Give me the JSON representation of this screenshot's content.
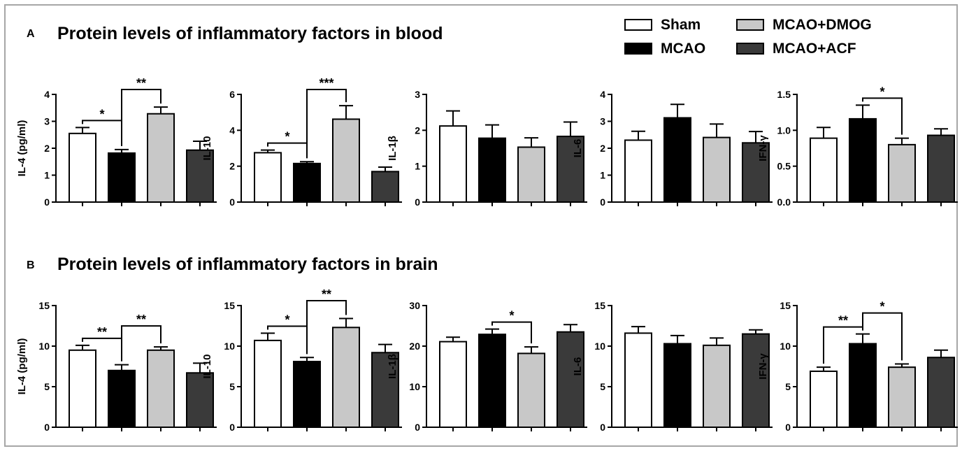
{
  "panels": [
    {
      "letter": "A",
      "title": "Protein levels of inflammatory factors in blood"
    },
    {
      "letter": "B",
      "title": "Protein levels of inflammatory factors in brain"
    }
  ],
  "legend": [
    {
      "name": "Sham",
      "color": "#ffffff"
    },
    {
      "name": "MCAO",
      "color": "#000000"
    },
    {
      "name": "MCAO+DMOG",
      "color": "#c8c8c8"
    },
    {
      "name": "MCAO+ACF",
      "color": "#3a3a3a"
    }
  ],
  "colors": {
    "axis": "#000000",
    "frame": "#a6a6a6"
  },
  "chart_data": [
    {
      "type": "bar",
      "panel": "A",
      "ylabel": "IL-4 (pg/ml)",
      "ylim": [
        0,
        4
      ],
      "yticks": [
        "0",
        "1",
        "2",
        "3",
        "4"
      ],
      "categories": [
        "Sham",
        "MCAO",
        "MCAO+DMOG",
        "MCAO+ACF"
      ],
      "values": [
        2.55,
        1.82,
        3.28,
        1.93
      ],
      "errors": [
        0.22,
        0.13,
        0.25,
        0.33
      ],
      "significance": [
        {
          "from": 0,
          "to": 1,
          "label": "*"
        },
        {
          "from": 1,
          "to": 2,
          "label": "**"
        }
      ]
    },
    {
      "type": "bar",
      "panel": "A",
      "ylabel": "IL-10",
      "ylim": [
        0,
        6
      ],
      "yticks": [
        "0",
        "2",
        "4",
        "6"
      ],
      "categories": [
        "Sham",
        "MCAO",
        "MCAO+DMOG",
        "MCAO+ACF"
      ],
      "values": [
        2.75,
        2.15,
        4.62,
        1.7
      ],
      "errors": [
        0.15,
        0.1,
        0.75,
        0.25
      ],
      "significance": [
        {
          "from": 0,
          "to": 1,
          "label": "*"
        },
        {
          "from": 1,
          "to": 2,
          "label": "***"
        }
      ]
    },
    {
      "type": "bar",
      "panel": "A",
      "ylabel": "IL-1β",
      "ylim": [
        0,
        3
      ],
      "yticks": [
        "0",
        "1",
        "2",
        "3"
      ],
      "categories": [
        "Sham",
        "MCAO",
        "MCAO+DMOG",
        "MCAO+ACF"
      ],
      "values": [
        2.12,
        1.78,
        1.53,
        1.83
      ],
      "errors": [
        0.42,
        0.37,
        0.26,
        0.4
      ],
      "significance": []
    },
    {
      "type": "bar",
      "panel": "A",
      "ylabel": "IL-6",
      "ylim": [
        0,
        4
      ],
      "yticks": [
        "0",
        "1",
        "2",
        "3",
        "4"
      ],
      "categories": [
        "Sham",
        "MCAO",
        "MCAO+DMOG",
        "MCAO+ACF"
      ],
      "values": [
        2.3,
        3.13,
        2.4,
        2.2
      ],
      "errors": [
        0.33,
        0.5,
        0.5,
        0.42
      ],
      "significance": []
    },
    {
      "type": "bar",
      "panel": "A",
      "ylabel": "IFN-γ",
      "ylim": [
        0,
        1.5
      ],
      "yticks": [
        "0.0",
        "0.5",
        "1.0",
        "1.5"
      ],
      "categories": [
        "Sham",
        "MCAO",
        "MCAO+DMOG",
        "MCAO+ACF"
      ],
      "values": [
        0.89,
        1.16,
        0.8,
        0.93
      ],
      "errors": [
        0.15,
        0.19,
        0.09,
        0.09
      ],
      "significance": [
        {
          "from": 1,
          "to": 2,
          "label": "*"
        }
      ]
    },
    {
      "type": "bar",
      "panel": "B",
      "ylabel": "IL-4 (pg/ml)",
      "ylim": [
        0,
        15
      ],
      "yticks": [
        "0",
        "5",
        "10",
        "15"
      ],
      "categories": [
        "Sham",
        "MCAO",
        "MCAO+DMOG",
        "MCAO+ACF"
      ],
      "values": [
        9.5,
        7.0,
        9.5,
        6.7
      ],
      "errors": [
        0.6,
        0.7,
        0.4,
        1.2
      ],
      "significance": [
        {
          "from": 0,
          "to": 1,
          "label": "**"
        },
        {
          "from": 1,
          "to": 2,
          "label": "**"
        }
      ]
    },
    {
      "type": "bar",
      "panel": "B",
      "ylabel": "IL-10",
      "ylim": [
        0,
        15
      ],
      "yticks": [
        "0",
        "5",
        "10",
        "15"
      ],
      "categories": [
        "Sham",
        "MCAO",
        "MCAO+DMOG",
        "MCAO+ACF"
      ],
      "values": [
        10.7,
        8.1,
        12.3,
        9.2
      ],
      "errors": [
        0.9,
        0.5,
        1.1,
        1.0
      ],
      "significance": [
        {
          "from": 0,
          "to": 1,
          "label": "*"
        },
        {
          "from": 1,
          "to": 2,
          "label": "**"
        }
      ]
    },
    {
      "type": "bar",
      "panel": "B",
      "ylabel": "IL-1β",
      "ylim": [
        0,
        30
      ],
      "yticks": [
        "0",
        "10",
        "20",
        "30"
      ],
      "categories": [
        "Sham",
        "MCAO",
        "MCAO+DMOG",
        "MCAO+ACF"
      ],
      "values": [
        21.1,
        22.9,
        18.2,
        23.5
      ],
      "errors": [
        1.1,
        1.3,
        1.6,
        1.8
      ],
      "significance": [
        {
          "from": 1,
          "to": 2,
          "label": "*"
        }
      ]
    },
    {
      "type": "bar",
      "panel": "B",
      "ylabel": "IL-6",
      "ylim": [
        0,
        15
      ],
      "yticks": [
        "0",
        "5",
        "10",
        "15"
      ],
      "categories": [
        "Sham",
        "MCAO",
        "MCAO+DMOG",
        "MCAO+ACF"
      ],
      "values": [
        11.6,
        10.3,
        10.1,
        11.5
      ],
      "errors": [
        0.8,
        1.0,
        0.9,
        0.5
      ],
      "significance": []
    },
    {
      "type": "bar",
      "panel": "B",
      "ylabel": "IFN-γ",
      "ylim": [
        0,
        15
      ],
      "yticks": [
        "0",
        "5",
        "10",
        "15"
      ],
      "categories": [
        "Sham",
        "MCAO",
        "MCAO+DMOG",
        "MCAO+ACF"
      ],
      "values": [
        6.9,
        10.3,
        7.4,
        8.6
      ],
      "errors": [
        0.5,
        1.2,
        0.4,
        0.9
      ],
      "significance": [
        {
          "from": 0,
          "to": 1,
          "label": "**"
        },
        {
          "from": 1,
          "to": 2,
          "label": "*"
        }
      ]
    }
  ]
}
